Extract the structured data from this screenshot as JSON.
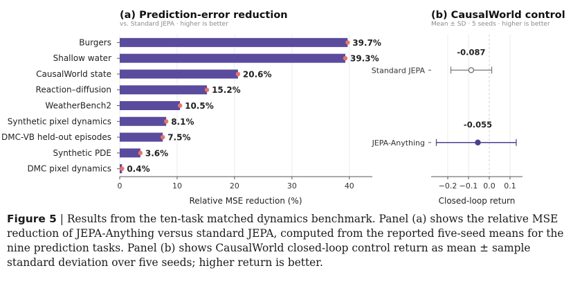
{
  "chart_data": [
    {
      "type": "bar",
      "title": "(a)  Prediction-error reduction",
      "subtitle": "vs. Standard JEPA  ·  higher is better",
      "categories": [
        "Burgers",
        "Shallow water",
        "CausalWorld state",
        "Reaction–diffusion",
        "WeatherBench2",
        "Synthetic pixel dynamics",
        "DMC-VB held-out episodes",
        "Synthetic PDE",
        "DMC pixel dynamics"
      ],
      "values": [
        39.7,
        39.3,
        20.6,
        15.2,
        10.5,
        8.1,
        7.5,
        3.6,
        0.4
      ],
      "value_labels": [
        "39.7%",
        "39.3%",
        "20.6%",
        "15.2%",
        "10.5%",
        "8.1%",
        "7.5%",
        "3.6%",
        "0.4%"
      ],
      "xlabel": "Relative MSE reduction (%)",
      "xlim": [
        0,
        44
      ],
      "xticks": [
        0,
        10,
        20,
        30,
        40
      ],
      "bar_color": "#5b4b9e",
      "marker_color": "#e8746a",
      "grid": true
    },
    {
      "type": "scatter",
      "title": "(b)  CausalWorld control",
      "subtitle": "Mean ± SD  ·  5 seeds  ·  higher is better",
      "categories": [
        "Standard JEPA",
        "JEPA-Anything"
      ],
      "means": [
        -0.087,
        -0.055
      ],
      "lower": [
        -0.185,
        -0.255
      ],
      "upper": [
        0.012,
        0.13
      ],
      "value_labels": [
        "-0.087",
        "-0.055"
      ],
      "xlabel": "Closed-loop return",
      "xlim": [
        -0.28,
        0.16
      ],
      "xticks": [
        -0.2,
        -0.1,
        0.0,
        0.1
      ],
      "xtick_labels": [
        "−0.2",
        "−0.1",
        "0.0",
        "0.1"
      ],
      "colors": [
        "#777777",
        "#4a3f8f"
      ],
      "grid": true
    }
  ],
  "caption": {
    "label": "Figure 5",
    "text": " | Results from the ten-task matched dynamics benchmark. Panel (a) shows the relative MSE reduction of JEPA-Anything versus standard JEPA, computed from the reported five-seed means for the nine prediction tasks. Panel (b) shows CausalWorld closed-loop control return as mean ± sample standard deviation over five seeds; higher return is better."
  }
}
